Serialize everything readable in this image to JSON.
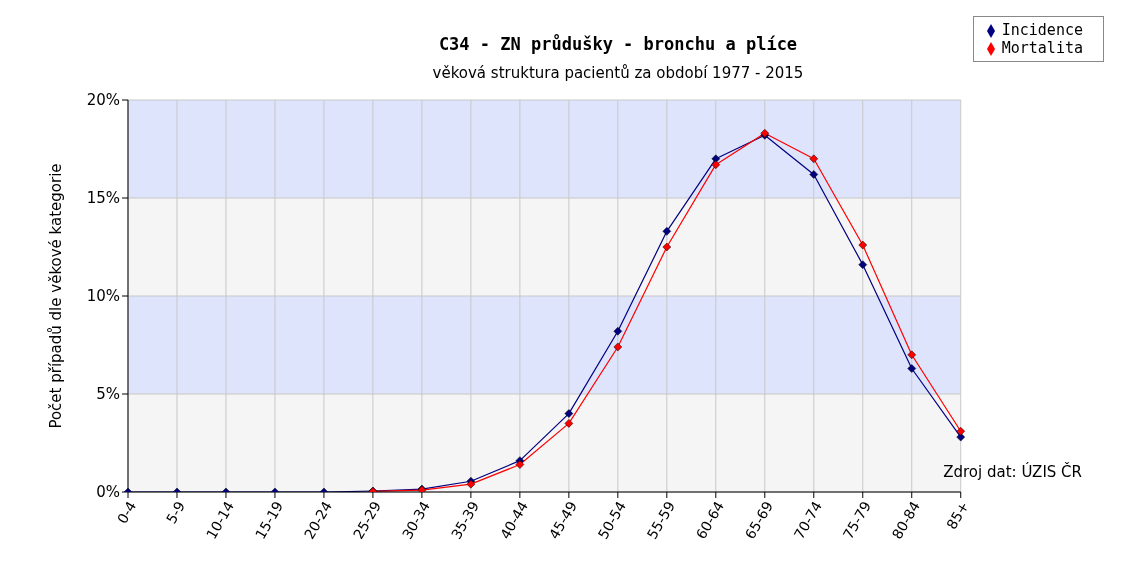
{
  "chart_data": {
    "type": "line",
    "title": "C34 - ZN průdušky - bronchu a plíce",
    "subtitle": "věková struktura pacientů za období 1977 - 2015",
    "ylabel": "Počet případů dle věkové kategorie",
    "categories": [
      "0-4",
      "5-9",
      "10-14",
      "15-19",
      "20-24",
      "25-29",
      "30-34",
      "35-39",
      "40-44",
      "45-49",
      "50-54",
      "55-59",
      "60-64",
      "65-69",
      "70-74",
      "75-79",
      "80-84",
      "85+"
    ],
    "series": [
      {
        "name": "Incidence",
        "color": "#000080",
        "values": [
          0,
          0,
          0,
          0,
          0,
          0.05,
          0.15,
          0.55,
          1.6,
          4.0,
          8.2,
          13.3,
          17.0,
          18.2,
          16.2,
          11.6,
          6.3,
          2.8
        ]
      },
      {
        "name": "Mortalita",
        "color": "#ff0000",
        "values": [
          null,
          null,
          null,
          null,
          null,
          0.03,
          0.1,
          0.4,
          1.4,
          3.5,
          7.4,
          12.5,
          16.7,
          18.3,
          17.0,
          12.6,
          7.0,
          3.1
        ]
      }
    ],
    "ylim": [
      0,
      20
    ],
    "yticks": [
      {
        "value": 0,
        "label": "0%"
      },
      {
        "value": 5,
        "label": "5%"
      },
      {
        "value": 10,
        "label": "10%"
      },
      {
        "value": 15,
        "label": "15%"
      },
      {
        "value": 20,
        "label": "20%"
      }
    ],
    "bands": [
      {
        "axis": "y",
        "from": 0,
        "to": 5,
        "color": "#f5f5f5"
      },
      {
        "axis": "y",
        "from": 5,
        "to": 10,
        "color": "#dde4fc"
      },
      {
        "axis": "y",
        "from": 10,
        "to": 15,
        "color": "#f5f5f5"
      },
      {
        "axis": "y",
        "from": 15,
        "to": 20,
        "color": "#dde4fc"
      }
    ],
    "grid": true,
    "legend": "top right",
    "marker": "diamond",
    "line_style": "solid",
    "annotations": [
      "Zdroj dat: ÚZIS ČR"
    ]
  }
}
